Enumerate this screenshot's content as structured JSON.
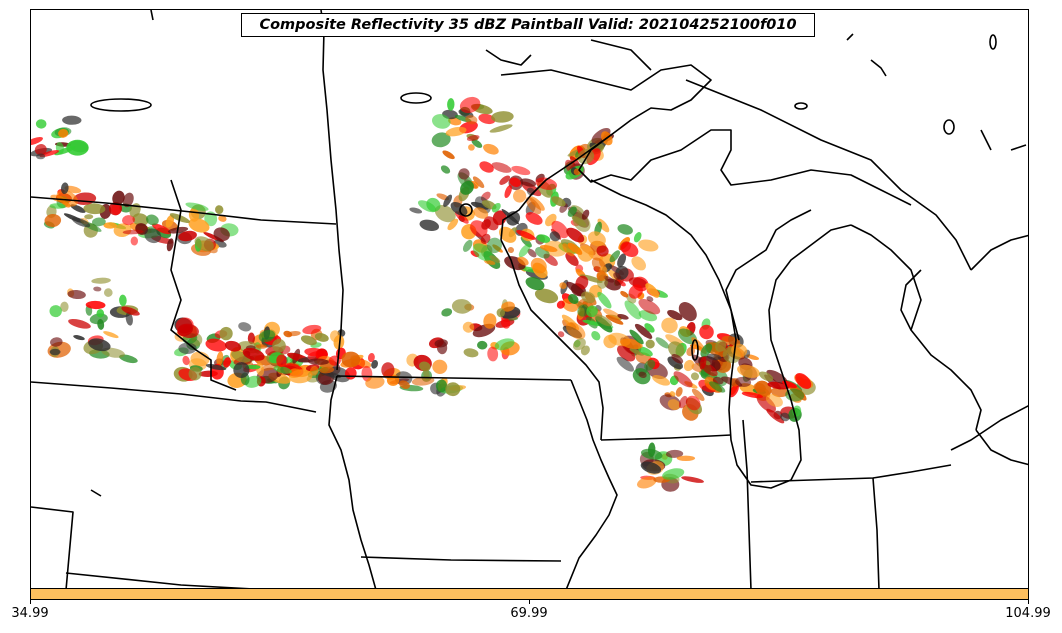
{
  "title": "Composite Reflectivity 35 dBZ Paintball Valid: 202104252100f010",
  "colorbar": {
    "color": "#fdbf5e",
    "ticks": [
      "34.99",
      "69.99",
      "104.99"
    ]
  },
  "member_colors": [
    "#ff0000",
    "#cc0000",
    "#ff8000",
    "#e06000",
    "#33cc33",
    "#228b22",
    "#8f8f2f",
    "#6b0f0f",
    "#303030",
    "#ffa020"
  ]
}
